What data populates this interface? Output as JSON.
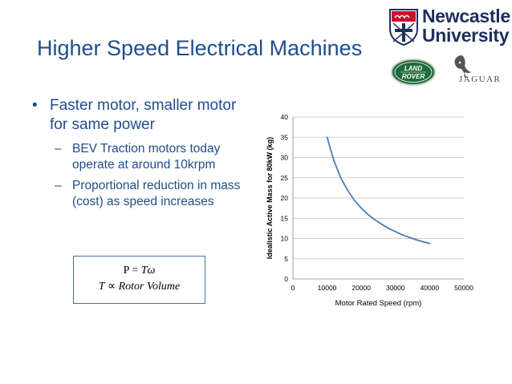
{
  "slide": {
    "title": "Higher Speed Electrical Machines",
    "bullets": [
      {
        "text": "Faster motor, smaller motor for same power",
        "subs": [
          "BEV Traction motors today operate at around 10krpm",
          "Proportional reduction in mass (cost) as speed increases"
        ]
      }
    ],
    "formula": {
      "line1_lhs": "P",
      "line1_eq": " = ",
      "line1_rhs": "Tω",
      "line2_lhs": "T",
      "line2_op": " ∝ ",
      "line2_rhs": "Rotor Volume"
    }
  },
  "logos": {
    "university_line1": "Newcastle",
    "university_line2": "University",
    "land_rover": [
      "LAND",
      "ROVER"
    ],
    "jaguar": "JAGUAR",
    "colors": {
      "newcastle_blue": "#1f2f5c",
      "land_rover_green": "#1f6b3a",
      "title_blue": "#1f4e8c"
    }
  },
  "chart_data": {
    "type": "line",
    "title": "",
    "xlabel": "Motor Rated Speed (rpm)",
    "ylabel": "Idealistic Active Mass for 80kW (kg)",
    "xlim": [
      0,
      50000
    ],
    "ylim": [
      0,
      40
    ],
    "xticks": [
      0,
      10000,
      20000,
      30000,
      40000,
      50000
    ],
    "yticks": [
      0,
      5,
      10,
      15,
      20,
      25,
      30,
      35,
      40
    ],
    "grid": true,
    "legend": "none",
    "series": [
      {
        "color": "#4a7ebb",
        "x": [
          10000,
          12000,
          14000,
          16000,
          18000,
          20000,
          22000,
          24000,
          26000,
          28000,
          30000,
          32000,
          34000,
          36000,
          38000,
          40000
        ],
        "y": [
          35.0,
          29.2,
          25.0,
          21.9,
          19.4,
          17.5,
          15.9,
          14.6,
          13.5,
          12.5,
          11.7,
          10.9,
          10.3,
          9.7,
          9.2,
          8.75
        ]
      }
    ]
  }
}
